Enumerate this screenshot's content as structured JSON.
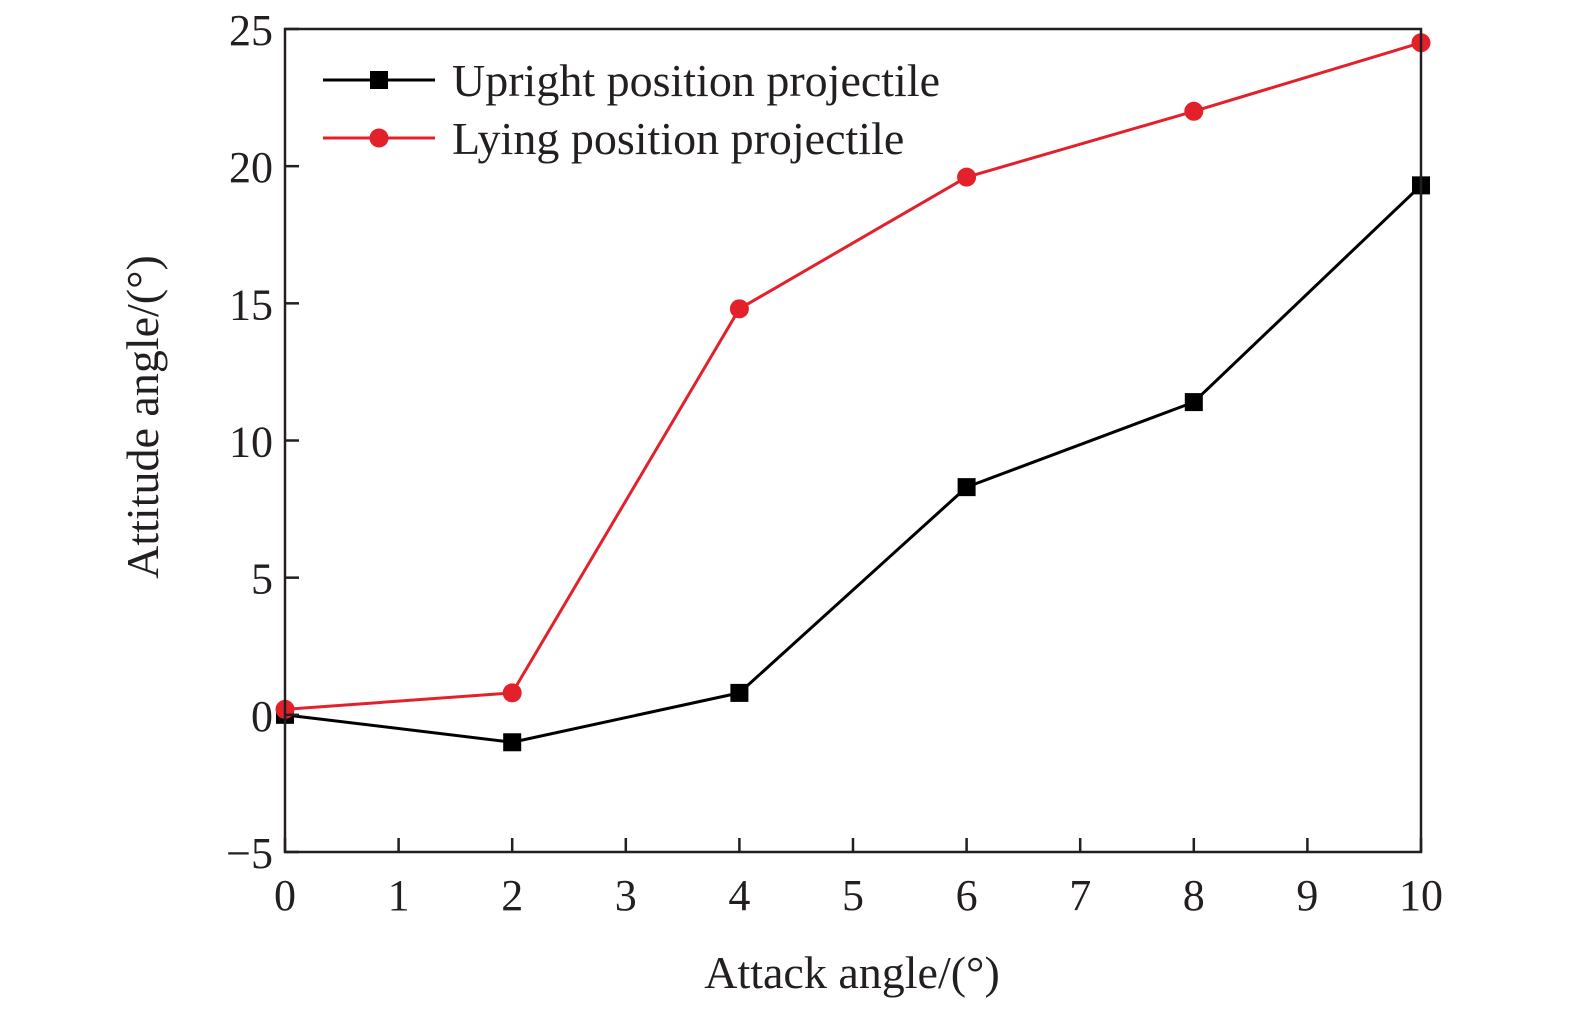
{
  "chart_data": {
    "type": "line",
    "title": "",
    "xlabel": "Attack angle/(°)",
    "ylabel": "Attitude angle/(°)",
    "xlim": [
      0,
      10
    ],
    "ylim": [
      -5,
      25
    ],
    "xticks": [
      0,
      1,
      2,
      3,
      4,
      5,
      6,
      7,
      8,
      9,
      10
    ],
    "yticks": [
      -5,
      0,
      5,
      10,
      15,
      20,
      25
    ],
    "ytick_labels": [
      "−5",
      "0",
      "5",
      "10",
      "15",
      "20",
      "25"
    ],
    "x": [
      0,
      2,
      4,
      6,
      8,
      10
    ],
    "series": [
      {
        "name": "Upright position projectile",
        "color": "#000000",
        "marker": "square",
        "values": [
          0,
          -1,
          0.8,
          8.3,
          11.4,
          19.3
        ]
      },
      {
        "name": "Lying position projectile",
        "color": "#e2212b",
        "marker": "circle",
        "values": [
          0.2,
          0.8,
          14.8,
          19.6,
          22.0,
          24.5
        ]
      }
    ],
    "grid": false,
    "legend": "top-left"
  }
}
